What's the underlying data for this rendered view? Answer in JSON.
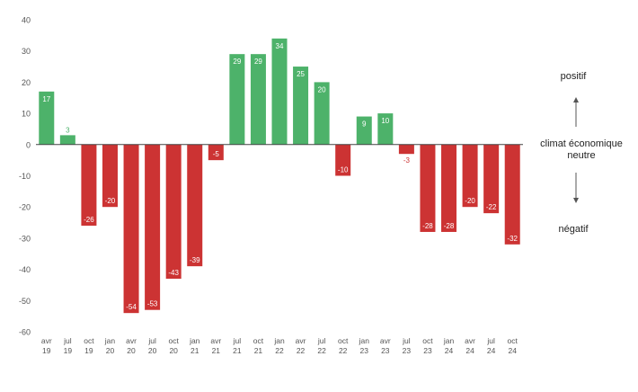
{
  "chart_data": {
    "type": "bar",
    "categories": [
      [
        "avr",
        "19"
      ],
      [
        "jul",
        "19"
      ],
      [
        "oct",
        "19"
      ],
      [
        "jan",
        "20"
      ],
      [
        "avr",
        "20"
      ],
      [
        "jul",
        "20"
      ],
      [
        "oct",
        "20"
      ],
      [
        "jan",
        "21"
      ],
      [
        "avr",
        "21"
      ],
      [
        "jul",
        "21"
      ],
      [
        "oct",
        "21"
      ],
      [
        "jan",
        "22"
      ],
      [
        "avr",
        "22"
      ],
      [
        "jul",
        "22"
      ],
      [
        "oct",
        "22"
      ],
      [
        "jan",
        "23"
      ],
      [
        "avr",
        "23"
      ],
      [
        "jul",
        "23"
      ],
      [
        "oct",
        "23"
      ],
      [
        "jan",
        "24"
      ],
      [
        "avr",
        "24"
      ],
      [
        "jul",
        "24"
      ],
      [
        "oct",
        "24"
      ]
    ],
    "values": [
      17,
      3,
      -26,
      -20,
      -54,
      -53,
      -43,
      -39,
      -5,
      29,
      29,
      34,
      25,
      20,
      -10,
      9,
      10,
      -3,
      -28,
      -28,
      -20,
      -22,
      -32
    ],
    "ylim": [
      -60,
      40
    ],
    "yticks": [
      40,
      30,
      20,
      10,
      0,
      -10,
      -20,
      -30,
      -40,
      -50,
      -60
    ],
    "grid": false,
    "colors": {
      "positive": "#4db26a",
      "negative": "#cc3333",
      "axis": "#444444",
      "tick_text": "#555555"
    }
  },
  "side_labels": {
    "positive": "positif",
    "neutral_line1": "climat économique",
    "neutral_line2": "neutre",
    "negative": "négatif"
  }
}
